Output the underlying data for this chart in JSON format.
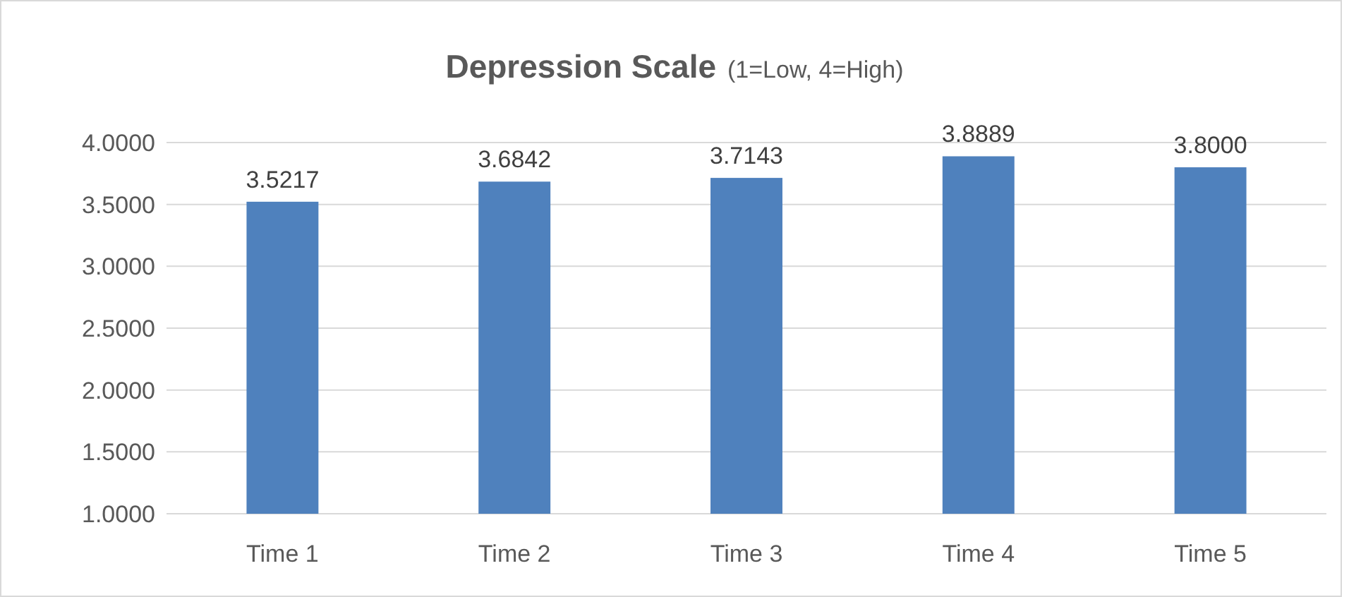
{
  "chart_data": {
    "type": "bar",
    "title": "Depression Scale",
    "subtitle": "(1=Low, 4=High)",
    "categories": [
      "Time 1",
      "Time 2",
      "Time 3",
      "Time 4",
      "Time 5"
    ],
    "values": [
      3.5217,
      3.6842,
      3.7143,
      3.8889,
      3.8
    ],
    "value_labels": [
      "3.5217",
      "3.6842",
      "3.7143",
      "3.8889",
      "3.8000"
    ],
    "color": "#4f81bd",
    "ylim": [
      1,
      4
    ],
    "yticks": [
      {
        "value": 1,
        "label": "1.0000"
      },
      {
        "value": 1.5,
        "label": "1.5000"
      },
      {
        "value": 2,
        "label": "2.0000"
      },
      {
        "value": 2.5,
        "label": "2.5000"
      },
      {
        "value": 3,
        "label": "3.0000"
      },
      {
        "value": 3.5,
        "label": "3.5000"
      },
      {
        "value": 4,
        "label": "4.0000"
      }
    ],
    "grid": "y"
  }
}
